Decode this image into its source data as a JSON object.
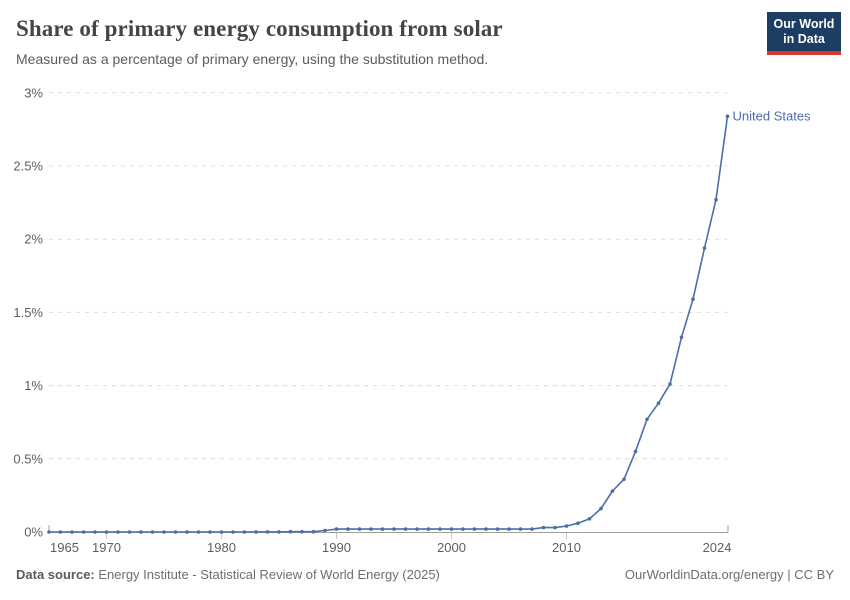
{
  "header": {
    "title": "Share of primary energy consumption from solar",
    "subtitle": "Measured as a percentage of primary energy, using the substitution method.",
    "logo": {
      "line1": "Our World",
      "line2": "in Data",
      "bg_color": "#1d3d63",
      "accent_color": "#d7382f"
    }
  },
  "footer": {
    "source_label": "Data source:",
    "source_text": " Energy Institute - Statistical Review of World Energy (2025)",
    "link_text": "OurWorldinData.org/energy",
    "separator": " | ",
    "license_text": "CC BY"
  },
  "chart_data": {
    "type": "line",
    "title": "Share of primary energy consumption from solar",
    "subtitle": "Measured as a percentage of primary energy, using the substitution method.",
    "xlabel": "",
    "ylabel": "",
    "xlim": [
      1965,
      2024
    ],
    "ylim": [
      0,
      3
    ],
    "grid": "horizontal-dashed",
    "legend_position": "end-of-line-label",
    "x_ticks": [
      1965,
      1970,
      1980,
      1990,
      2000,
      2010,
      2024
    ],
    "y_ticks": [
      0,
      0.5,
      1,
      1.5,
      2,
      2.5,
      3
    ],
    "y_tick_suffix": "%",
    "colors": {
      "series": "#4c6ea8",
      "gridline": "#dcdcdc",
      "axis": "#9e9e9e",
      "minor_tick": "#c8c8c8",
      "tick_label": "#5e5e5e"
    },
    "series": [
      {
        "name": "United States",
        "color": "#4c6ea8",
        "x": [
          1965,
          1966,
          1967,
          1968,
          1969,
          1970,
          1971,
          1972,
          1973,
          1974,
          1975,
          1976,
          1977,
          1978,
          1979,
          1980,
          1981,
          1982,
          1983,
          1984,
          1985,
          1986,
          1987,
          1988,
          1989,
          1990,
          1991,
          1992,
          1993,
          1994,
          1995,
          1996,
          1997,
          1998,
          1999,
          2000,
          2001,
          2002,
          2003,
          2004,
          2005,
          2006,
          2007,
          2008,
          2009,
          2010,
          2011,
          2012,
          2013,
          2014,
          2015,
          2016,
          2017,
          2018,
          2019,
          2020,
          2021,
          2022,
          2023,
          2024
        ],
        "values": [
          0,
          0,
          0,
          0,
          0,
          0,
          0,
          0,
          0,
          0,
          0,
          0,
          0,
          0,
          0,
          0,
          0,
          0,
          0.001,
          0.001,
          0.001,
          0.002,
          0.002,
          0.002,
          0.01,
          0.02,
          0.02,
          0.02,
          0.02,
          0.02,
          0.02,
          0.02,
          0.02,
          0.02,
          0.02,
          0.02,
          0.02,
          0.02,
          0.02,
          0.02,
          0.02,
          0.02,
          0.02,
          0.03,
          0.03,
          0.04,
          0.06,
          0.09,
          0.16,
          0.28,
          0.36,
          0.55,
          0.77,
          0.88,
          1.01,
          1.33,
          1.59,
          1.94,
          2.27,
          2.84
        ]
      }
    ]
  }
}
